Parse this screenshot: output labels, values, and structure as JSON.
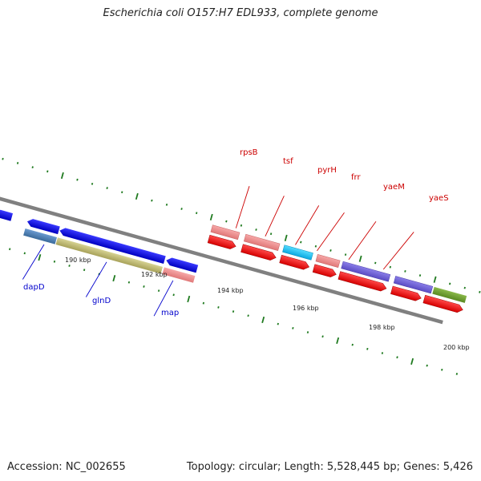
{
  "title": "Escherichia coli O157:H7 EDL933, complete genome",
  "footer": {
    "accession": "Accession: NC_002655",
    "summary": "Topology: circular; Length: 5,528,445 bp; Genes: 5,426"
  },
  "colors": {
    "backbone": "#808080",
    "tick": "#1f7a1f",
    "forward_label": "#cc0000",
    "reverse_label": "#0000cc"
  },
  "ticks": [
    {
      "label": "190 kbp"
    },
    {
      "label": "192 kbp"
    },
    {
      "label": "194 kbp"
    },
    {
      "label": "196 kbp"
    },
    {
      "label": "198 kbp"
    },
    {
      "label": "200 kbp"
    }
  ],
  "forward_genes": [
    {
      "name": "rpsB"
    },
    {
      "name": "tsf"
    },
    {
      "name": "pyrH"
    },
    {
      "name": "frr"
    },
    {
      "name": "yaeM"
    },
    {
      "name": "yaeS"
    }
  ],
  "reverse_genes": [
    {
      "name": "dapD"
    },
    {
      "name": "glnD"
    },
    {
      "name": "map"
    }
  ]
}
